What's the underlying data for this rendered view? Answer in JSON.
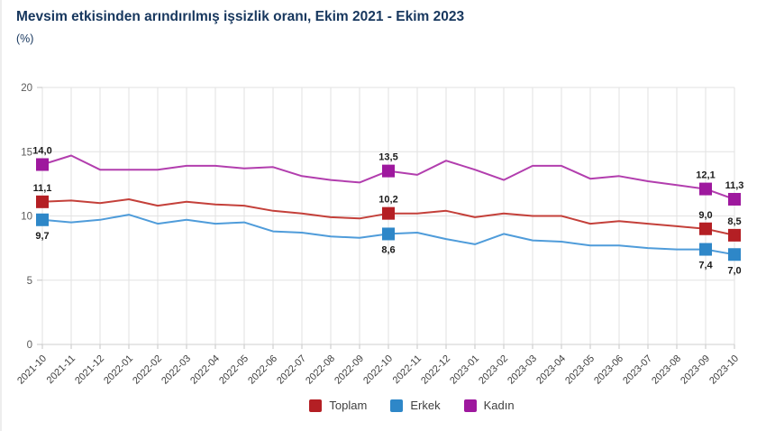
{
  "header": {
    "title": "Mevsim etkisinden arındırılmış işsizlik oranı, Ekim 2021 - Ekim 2023",
    "unit_label": "(%)"
  },
  "chart_data": {
    "type": "line",
    "title": "Mevsim etkisinden arındırılmış işsizlik oranı, Ekim 2021 - Ekim 2023",
    "ylabel": "(%)",
    "xlabel": "",
    "ylim": [
      0,
      20
    ],
    "yticks": [
      0,
      5,
      10,
      15,
      20
    ],
    "grid": true,
    "legend_position": "bottom",
    "x_label_rotation": -45,
    "categories": [
      "2021-10",
      "2021-11",
      "2021-12",
      "2022-01",
      "2022-02",
      "2022-03",
      "2022-04",
      "2022-05",
      "2022-06",
      "2022-07",
      "2022-08",
      "2022-09",
      "2022-10",
      "2022-11",
      "2022-12",
      "2023-01",
      "2023-02",
      "2023-03",
      "2023-04",
      "2023-05",
      "2023-06",
      "2023-07",
      "2023-08",
      "2023-09",
      "2023-10"
    ],
    "series": [
      {
        "name": "Toplam",
        "line_color": "#c4403a",
        "marker_color": "#b41f24",
        "label_position": "above",
        "values": [
          11.1,
          11.2,
          11.0,
          11.3,
          10.8,
          11.1,
          10.9,
          10.8,
          10.4,
          10.2,
          9.9,
          9.8,
          10.2,
          10.2,
          10.4,
          9.9,
          10.2,
          10.0,
          10.0,
          9.4,
          9.6,
          9.4,
          9.2,
          9.0,
          8.5
        ],
        "point_labels": [
          {
            "category": "2021-10",
            "text": "11,1"
          },
          {
            "category": "2022-10",
            "text": "10,2"
          },
          {
            "category": "2023-09",
            "text": "9,0"
          },
          {
            "category": "2023-10",
            "text": "8,5"
          }
        ]
      },
      {
        "name": "Erkek",
        "line_color": "#4f9cda",
        "marker_color": "#2e87c8",
        "label_position": "below",
        "values": [
          9.7,
          9.5,
          9.7,
          10.1,
          9.4,
          9.7,
          9.4,
          9.5,
          8.8,
          8.7,
          8.4,
          8.3,
          8.6,
          8.7,
          8.2,
          7.8,
          8.6,
          8.1,
          8.0,
          7.7,
          7.7,
          7.5,
          7.4,
          7.4,
          7.0
        ],
        "point_labels": [
          {
            "category": "2021-10",
            "text": "9,7"
          },
          {
            "category": "2022-10",
            "text": "8,6"
          },
          {
            "category": "2023-09",
            "text": "7,4"
          },
          {
            "category": "2023-10",
            "text": "7,0"
          }
        ]
      },
      {
        "name": "Kadın",
        "line_color": "#b23eae",
        "marker_color": "#9e189e",
        "label_position": "above",
        "values": [
          14.0,
          14.7,
          13.6,
          13.6,
          13.6,
          13.9,
          13.9,
          13.7,
          13.8,
          13.1,
          12.8,
          12.6,
          13.5,
          13.2,
          14.3,
          13.6,
          12.8,
          13.9,
          13.9,
          12.9,
          13.1,
          12.7,
          12.4,
          12.1,
          11.3
        ],
        "point_labels": [
          {
            "category": "2021-10",
            "text": "14,0"
          },
          {
            "category": "2022-10",
            "text": "13,5"
          },
          {
            "category": "2023-09",
            "text": "12,1"
          },
          {
            "category": "2023-10",
            "text": "11,3"
          }
        ]
      }
    ]
  },
  "legend": {
    "items": [
      {
        "label": "Toplam",
        "color": "#b41f24"
      },
      {
        "label": "Erkek",
        "color": "#2e87c8"
      },
      {
        "label": "Kadın",
        "color": "#9e189e"
      }
    ]
  },
  "colors": {
    "title": "#17375e",
    "grid": "#e2e2e2",
    "baseline": "#cfcfcf",
    "tick": "#c4c4c4",
    "y_label": "#5a5a5a",
    "x_label": "#3f3f3f",
    "data_label": "#1a1a1a"
  }
}
